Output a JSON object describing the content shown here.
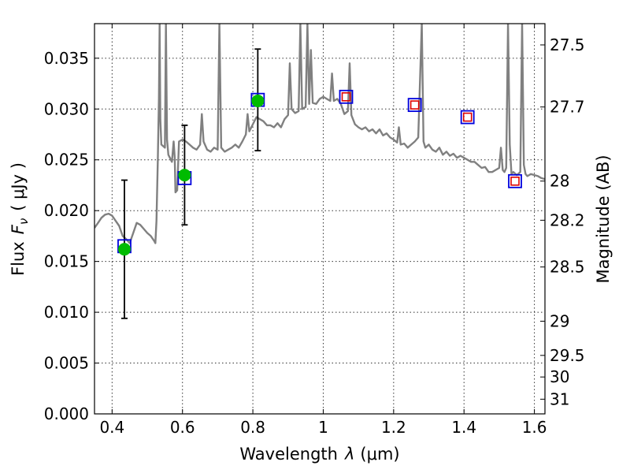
{
  "chart_data": {
    "type": "scatter",
    "xlabel": "Wavelength",
    "xlabel_symbol": "λ",
    "xlabel_unit": "(μm)",
    "ylabel": "Flux",
    "ylabel_symbol": "F",
    "ylabel_subscript": "ν",
    "ylabel_unit": "( μJy )",
    "right_ylabel": "Magnitude (AB)",
    "xlim": [
      0.35,
      1.63
    ],
    "ylim": [
      0.0,
      0.0384
    ],
    "grid": true,
    "x_ticks": [
      0.4,
      0.6,
      0.8,
      1.0,
      1.2,
      1.4,
      1.6
    ],
    "x_tick_labels": [
      "0.4",
      "0.6",
      "0.8",
      "1",
      "1.2",
      "1.4",
      "1.6"
    ],
    "y_ticks": [
      0.0,
      0.005,
      0.01,
      0.015,
      0.02,
      0.025,
      0.03,
      0.035
    ],
    "y_tick_labels": [
      "0.000",
      "0.005",
      "0.010",
      "0.015",
      "0.020",
      "0.025",
      "0.030",
      "0.035"
    ],
    "magnitude_ticks": [
      "27.5",
      "27.7",
      "28",
      "28.2",
      "28.5",
      "29",
      "29.5",
      "30",
      "31"
    ],
    "colors": {
      "model": "#808080",
      "observed": "#00bb00",
      "model_band": "#0000dd",
      "prediction": "#dd0000",
      "errorbar": "#000000"
    },
    "series": [
      {
        "type": "line",
        "points": [
          [
            0.35,
            0.0183
          ],
          [
            0.36,
            0.0188
          ],
          [
            0.37,
            0.0193
          ],
          [
            0.38,
            0.0196
          ],
          [
            0.39,
            0.0197
          ],
          [
            0.4,
            0.0195
          ],
          [
            0.41,
            0.019
          ],
          [
            0.42,
            0.0185
          ],
          [
            0.43,
            0.0175
          ],
          [
            0.44,
            0.0172
          ],
          [
            0.45,
            0.0168
          ],
          [
            0.46,
            0.0178
          ],
          [
            0.47,
            0.0188
          ],
          [
            0.48,
            0.0186
          ],
          [
            0.49,
            0.0182
          ],
          [
            0.5,
            0.0178
          ],
          [
            0.51,
            0.0175
          ],
          [
            0.52,
            0.017
          ],
          [
            0.523,
            0.0168
          ],
          [
            0.526,
            0.019
          ],
          [
            0.53,
            0.025
          ],
          [
            0.533,
            0.031
          ],
          [
            0.535,
            0.0384
          ],
          [
            0.537,
            0.029
          ],
          [
            0.54,
            0.0265
          ],
          [
            0.55,
            0.0262
          ],
          [
            0.553,
            0.0384
          ],
          [
            0.556,
            0.027
          ],
          [
            0.56,
            0.0255
          ],
          [
            0.57,
            0.0248
          ],
          [
            0.575,
            0.0268
          ],
          [
            0.578,
            0.0252
          ],
          [
            0.58,
            0.0218
          ],
          [
            0.585,
            0.022
          ],
          [
            0.59,
            0.0268
          ],
          [
            0.6,
            0.027
          ],
          [
            0.61,
            0.0268
          ],
          [
            0.62,
            0.0265
          ],
          [
            0.63,
            0.0262
          ],
          [
            0.64,
            0.026
          ],
          [
            0.65,
            0.0265
          ],
          [
            0.655,
            0.0295
          ],
          [
            0.66,
            0.0268
          ],
          [
            0.67,
            0.026
          ],
          [
            0.68,
            0.0258
          ],
          [
            0.69,
            0.0262
          ],
          [
            0.7,
            0.026
          ],
          [
            0.705,
            0.0384
          ],
          [
            0.71,
            0.0262
          ],
          [
            0.72,
            0.0258
          ],
          [
            0.73,
            0.026
          ],
          [
            0.74,
            0.0262
          ],
          [
            0.75,
            0.0265
          ],
          [
            0.76,
            0.0262
          ],
          [
            0.77,
            0.0268
          ],
          [
            0.78,
            0.0275
          ],
          [
            0.785,
            0.0295
          ],
          [
            0.79,
            0.0278
          ],
          [
            0.8,
            0.0285
          ],
          [
            0.81,
            0.0292
          ],
          [
            0.82,
            0.029
          ],
          [
            0.83,
            0.0288
          ],
          [
            0.84,
            0.0284
          ],
          [
            0.85,
            0.0284
          ],
          [
            0.86,
            0.0282
          ],
          [
            0.87,
            0.0286
          ],
          [
            0.88,
            0.0282
          ],
          [
            0.89,
            0.029
          ],
          [
            0.9,
            0.0294
          ],
          [
            0.905,
            0.0345
          ],
          [
            0.91,
            0.03
          ],
          [
            0.92,
            0.0296
          ],
          [
            0.93,
            0.0298
          ],
          [
            0.935,
            0.0384
          ],
          [
            0.94,
            0.03
          ],
          [
            0.95,
            0.0302
          ],
          [
            0.955,
            0.0384
          ],
          [
            0.96,
            0.0305
          ],
          [
            0.965,
            0.0358
          ],
          [
            0.97,
            0.0306
          ],
          [
            0.98,
            0.0305
          ],
          [
            0.99,
            0.031
          ],
          [
            1.0,
            0.0312
          ],
          [
            1.01,
            0.031
          ],
          [
            1.02,
            0.0308
          ],
          [
            1.025,
            0.0335
          ],
          [
            1.03,
            0.0308
          ],
          [
            1.04,
            0.031
          ],
          [
            1.05,
            0.0305
          ],
          [
            1.06,
            0.0295
          ],
          [
            1.07,
            0.0298
          ],
          [
            1.075,
            0.0345
          ],
          [
            1.08,
            0.0294
          ],
          [
            1.09,
            0.0285
          ],
          [
            1.1,
            0.0282
          ],
          [
            1.11,
            0.028
          ],
          [
            1.12,
            0.0282
          ],
          [
            1.13,
            0.0278
          ],
          [
            1.14,
            0.028
          ],
          [
            1.15,
            0.0276
          ],
          [
            1.16,
            0.028
          ],
          [
            1.17,
            0.0274
          ],
          [
            1.18,
            0.0276
          ],
          [
            1.19,
            0.0272
          ],
          [
            1.2,
            0.027
          ],
          [
            1.21,
            0.0267
          ],
          [
            1.215,
            0.0282
          ],
          [
            1.22,
            0.0265
          ],
          [
            1.23,
            0.0266
          ],
          [
            1.24,
            0.0262
          ],
          [
            1.25,
            0.0265
          ],
          [
            1.26,
            0.0268
          ],
          [
            1.27,
            0.0272
          ],
          [
            1.28,
            0.0384
          ],
          [
            1.285,
            0.0268
          ],
          [
            1.29,
            0.0262
          ],
          [
            1.3,
            0.0265
          ],
          [
            1.31,
            0.026
          ],
          [
            1.32,
            0.0258
          ],
          [
            1.33,
            0.0262
          ],
          [
            1.34,
            0.0255
          ],
          [
            1.35,
            0.0258
          ],
          [
            1.36,
            0.0254
          ],
          [
            1.37,
            0.0256
          ],
          [
            1.38,
            0.0252
          ],
          [
            1.39,
            0.0254
          ],
          [
            1.4,
            0.0252
          ],
          [
            1.41,
            0.025
          ],
          [
            1.42,
            0.0248
          ],
          [
            1.43,
            0.0248
          ],
          [
            1.44,
            0.0245
          ],
          [
            1.45,
            0.0242
          ],
          [
            1.46,
            0.0243
          ],
          [
            1.47,
            0.0238
          ],
          [
            1.48,
            0.0238
          ],
          [
            1.49,
            0.024
          ],
          [
            1.5,
            0.0242
          ],
          [
            1.505,
            0.0262
          ],
          [
            1.51,
            0.024
          ],
          [
            1.515,
            0.0238
          ],
          [
            1.52,
            0.0242
          ],
          [
            1.525,
            0.0384
          ],
          [
            1.53,
            0.0265
          ],
          [
            1.535,
            0.0236
          ],
          [
            1.54,
            0.0238
          ],
          [
            1.55,
            0.0235
          ],
          [
            1.56,
            0.0238
          ],
          [
            1.565,
            0.0384
          ],
          [
            1.57,
            0.0245
          ],
          [
            1.575,
            0.0236
          ],
          [
            1.58,
            0.0234
          ],
          [
            1.59,
            0.0236
          ],
          [
            1.6,
            0.0235
          ],
          [
            1.61,
            0.0234
          ],
          [
            1.62,
            0.0232
          ],
          [
            1.63,
            0.0231
          ]
        ]
      },
      {
        "type": "errorbar",
        "points": [
          {
            "x": 0.435,
            "y": 0.0162,
            "ylow": 0.0094,
            "yhigh": 0.023
          },
          {
            "x": 0.606,
            "y": 0.0235,
            "ylow": 0.0186,
            "yhigh": 0.0284
          },
          {
            "x": 0.814,
            "y": 0.0308,
            "ylow": 0.0259,
            "yhigh": 0.0359
          }
        ]
      },
      {
        "type": "scatter",
        "marker": "square",
        "points": [
          [
            0.435,
            0.0165
          ],
          [
            0.606,
            0.0232
          ],
          [
            0.814,
            0.0309
          ],
          [
            1.065,
            0.0312
          ],
          [
            1.26,
            0.0304
          ],
          [
            1.41,
            0.0292
          ],
          [
            1.545,
            0.0229
          ]
        ]
      },
      {
        "type": "scatter",
        "marker": "small-square",
        "points": [
          [
            1.065,
            0.0312
          ],
          [
            1.26,
            0.0304
          ],
          [
            1.41,
            0.0292
          ],
          [
            1.545,
            0.0229
          ]
        ]
      }
    ]
  }
}
